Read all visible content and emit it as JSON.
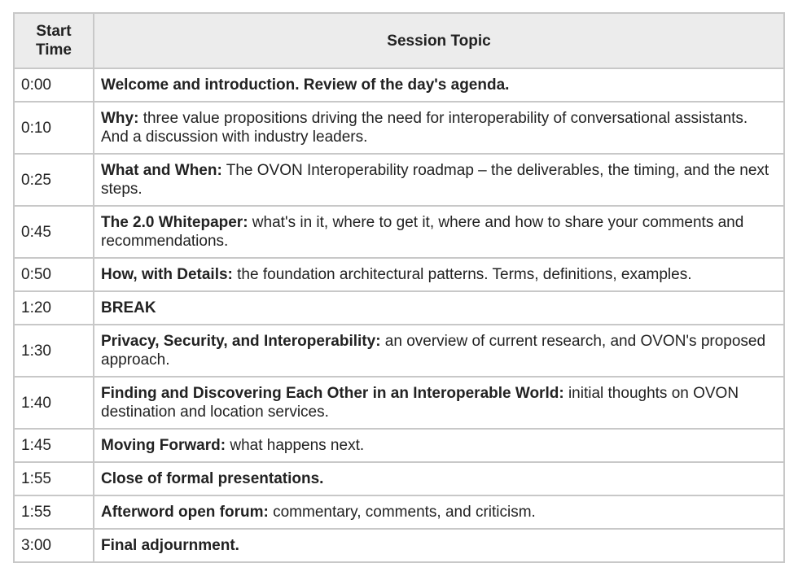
{
  "table": {
    "headers": {
      "time": "Start Time",
      "topic": "Session Topic"
    },
    "rows": [
      {
        "time": "0:00",
        "title": "Welcome and introduction. Review of the day's agenda.",
        "desc": ""
      },
      {
        "time": "0:10",
        "title": "Why:",
        "desc": " three value propositions driving the need for interoperability of conversational assistants. And a discussion with industry leaders."
      },
      {
        "time": "0:25",
        "title": "What and When:",
        "desc": " The OVON Interoperability roadmap – the deliverables, the timing, and the next steps."
      },
      {
        "time": "0:45",
        "title": "The 2.0 Whitepaper:",
        "desc": " what's in it, where to get it, where and how to share your comments and recommendations."
      },
      {
        "time": "0:50",
        "title": "How, with Details:",
        "desc": " the foundation architectural patterns. Terms, definitions, examples."
      },
      {
        "time": "1:20",
        "title": "BREAK",
        "desc": ""
      },
      {
        "time": "1:30",
        "title": "Privacy, Security, and Interoperability:",
        "desc": " an overview of current research, and OVON's proposed approach."
      },
      {
        "time": "1:40",
        "title": "Finding and Discovering Each Other in an Interoperable World:",
        "desc": " initial thoughts on OVON destination and location services."
      },
      {
        "time": "1:45",
        "title": "Moving Forward:",
        "desc": " what happens next."
      },
      {
        "time": "1:55",
        "title": "Close of formal presentations.",
        "desc": ""
      },
      {
        "time": "1:55",
        "title": "Afterword open forum:",
        "desc": " commentary, comments, and criticism."
      },
      {
        "time": "3:00",
        "title": "Final adjournment.",
        "desc": ""
      }
    ]
  }
}
